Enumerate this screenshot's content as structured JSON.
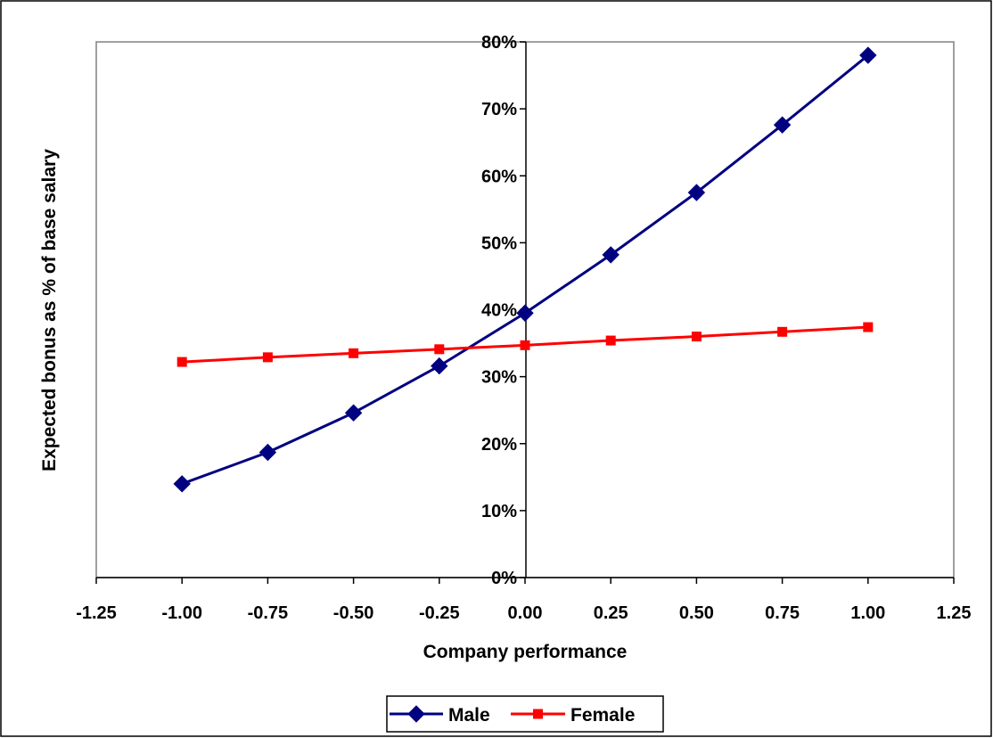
{
  "chart_data": {
    "type": "line",
    "title": "",
    "xlabel": "Company performance",
    "ylabel": "Expected bonus as % of base salary",
    "xlim": [
      -1.25,
      1.25
    ],
    "ylim": [
      0,
      0.8
    ],
    "x_ticks": [
      -1.25,
      -1.0,
      -0.75,
      -0.5,
      -0.25,
      0.0,
      0.25,
      0.5,
      0.75,
      1.0,
      1.25
    ],
    "x_tick_labels": [
      "-1.25",
      "-1.00",
      "-0.75",
      "-0.50",
      "-0.25",
      "0.00",
      "0.25",
      "0.50",
      "0.75",
      "1.00",
      "1.25"
    ],
    "y_ticks": [
      0,
      0.1,
      0.2,
      0.3,
      0.4,
      0.5,
      0.6,
      0.7,
      0.8
    ],
    "y_tick_labels": [
      "0%",
      "10%",
      "20%",
      "30%",
      "40%",
      "50%",
      "60%",
      "70%",
      "80%"
    ],
    "grid": false,
    "legend_position": "bottom",
    "x": [
      -1.0,
      -0.75,
      -0.5,
      -0.25,
      0.0,
      0.25,
      0.5,
      0.75,
      1.0
    ],
    "series": [
      {
        "name": "Male",
        "color": "#000080",
        "marker": "diamond",
        "values": [
          0.14,
          0.187,
          0.246,
          0.316,
          0.395,
          0.482,
          0.575,
          0.676,
          0.78
        ]
      },
      {
        "name": "Female",
        "color": "#ff0000",
        "marker": "square",
        "values": [
          0.322,
          0.329,
          0.335,
          0.341,
          0.347,
          0.354,
          0.36,
          0.367,
          0.374
        ]
      }
    ]
  }
}
